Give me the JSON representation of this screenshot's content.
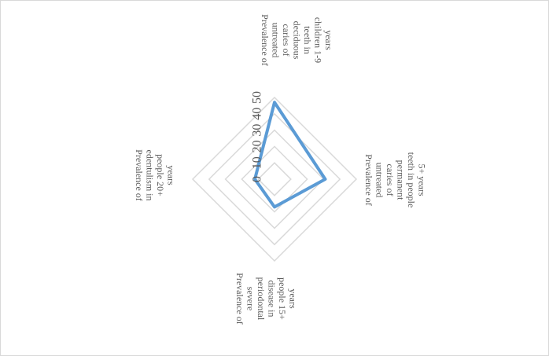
{
  "chart_data": {
    "type": "radar",
    "title": "",
    "axes": [
      "Prevalence of untreated caries of deciduous teeth in children 1-9 years",
      "Prevalence of untreated caries of permanent teeth in people 5+ years",
      "Prevalence of severe periodontal disease in people 15+ years",
      "Prevalence of edentulism in people 20+ years"
    ],
    "axis_label_lines": [
      [
        "Prevalence of",
        "untreated",
        "caries of",
        "deciduous",
        "teeth in",
        "children 1-9",
        "years"
      ],
      [
        "Prevalence of",
        "untreated",
        "caries of",
        "permanent",
        "teeth in people",
        "5+ years"
      ],
      [
        "Prevalence of",
        "severe",
        "periodontal",
        "disease in",
        "people 15+",
        "years"
      ],
      [
        "Prevalence of",
        "edentulism in",
        "people 20+",
        "years"
      ]
    ],
    "ticks": [
      "0",
      "10",
      "20",
      "30",
      "40",
      "50"
    ],
    "range": [
      0,
      50
    ],
    "series": [
      {
        "values": [
          47,
          31,
          17,
          12
        ],
        "color": "#5b9bd5"
      }
    ],
    "grid": true,
    "legend": "none"
  }
}
